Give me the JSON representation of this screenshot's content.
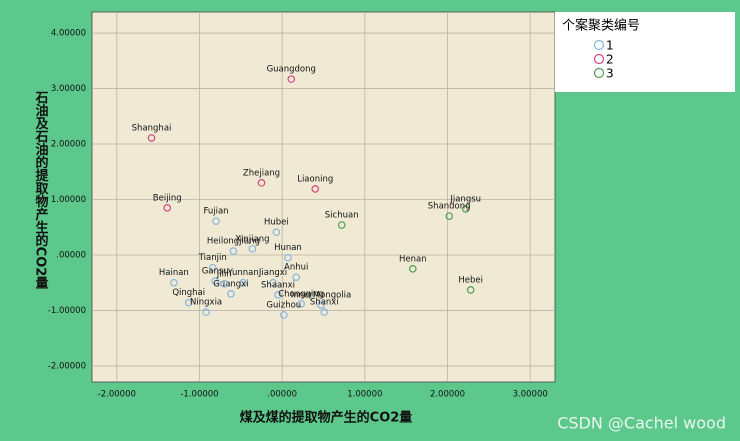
{
  "chart_data": {
    "type": "scatter",
    "xlabel": "煤及煤的提取物产生的CO2量",
    "ylabel": "石油及石油的提取物产生的CO2量",
    "legend_title": "个案聚类编号",
    "watermark": "CSDN @Cachel wood",
    "xlim": [
      -2.3,
      3.3
    ],
    "ylim": [
      -2.29,
      4.38
    ],
    "xticks": [
      {
        "value": -2,
        "label": "-2.00000"
      },
      {
        "value": -1,
        "label": "-1.00000"
      },
      {
        "value": 0,
        "label": ".00000"
      },
      {
        "value": 1,
        "label": "1.00000"
      },
      {
        "value": 2,
        "label": "2.00000"
      },
      {
        "value": 3,
        "label": "3.00000"
      }
    ],
    "yticks": [
      {
        "value": -2,
        "label": "-2.00000"
      },
      {
        "value": -1,
        "label": "-1.00000"
      },
      {
        "value": 0,
        "label": ".00000"
      },
      {
        "value": 1,
        "label": "1.00000"
      },
      {
        "value": 2,
        "label": "2.00000"
      },
      {
        "value": 3,
        "label": "3.00000"
      },
      {
        "value": 4,
        "label": "4.00000"
      }
    ],
    "grid": true,
    "series": [
      {
        "name": "1",
        "color": "#86b6e2",
        "labels": [
          "Fujian",
          "Hubei",
          "Xinjiang",
          "Heilongjiang",
          "Hunan",
          "Tianjin",
          "Anhui",
          "Hainan",
          "Gansu",
          "Yunnan",
          "Jiangxi",
          "Guangxi",
          "Shaanxi",
          "Qinghai",
          "Jilin",
          "Ningxia",
          "Chongqing",
          "InnerMongolia",
          "Guizhou",
          "Shanxi"
        ],
        "x": [
          -0.8,
          -0.07,
          -0.36,
          -0.59,
          0.07,
          -0.84,
          0.17,
          -1.31,
          -0.81,
          -0.47,
          -0.11,
          -0.62,
          -0.05,
          -1.13,
          -0.7,
          -0.92,
          0.23,
          0.47,
          0.02,
          0.51
        ],
        "values": [
          0.61,
          0.41,
          0.11,
          0.07,
          -0.05,
          -0.23,
          -0.4,
          -0.5,
          -0.47,
          -0.5,
          -0.5,
          -0.7,
          -0.72,
          -0.86,
          -0.52,
          -1.03,
          -0.88,
          -0.9,
          -1.08,
          -1.03
        ]
      },
      {
        "name": "2",
        "color": "#d4487c",
        "labels": [
          "Guangdong",
          "Shanghai",
          "Zhejiang",
          "Liaoning",
          "Beijing"
        ],
        "x": [
          0.11,
          -1.58,
          -0.25,
          0.4,
          -1.39
        ],
        "values": [
          3.17,
          2.11,
          1.3,
          1.19,
          0.85
        ]
      },
      {
        "name": "3",
        "color": "#4f9e54",
        "labels": [
          "Sichuan",
          "Jiangsu",
          "Shandong",
          "Henan",
          "Hebei"
        ],
        "x": [
          0.72,
          2.22,
          2.02,
          1.58,
          2.28
        ],
        "values": [
          0.54,
          0.83,
          0.7,
          -0.25,
          -0.63
        ]
      }
    ]
  }
}
